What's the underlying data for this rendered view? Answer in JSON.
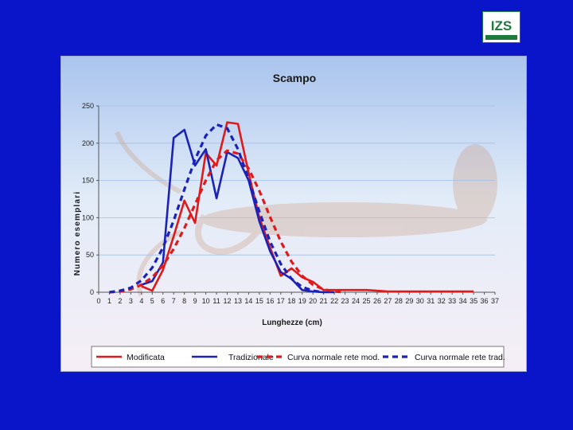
{
  "logo": {
    "text": "IZS",
    "colors": {
      "bg": "#ffffff",
      "fg": "#1e7a3a"
    }
  },
  "colors": {
    "background": "#0a14c8",
    "modificata": "#e01a1a",
    "tradizionale": "#1a22b8",
    "gridline": "#9fc0e8"
  },
  "chart_data": {
    "type": "line",
    "title": "Scampo",
    "xlabel": "Lunghezze (cm)",
    "ylabel": "Numero esemplari",
    "xlim": [
      0,
      37
    ],
    "ylim": [
      0,
      250
    ],
    "yticks": [
      0,
      50,
      100,
      150,
      200,
      250
    ],
    "x": [
      0,
      1,
      2,
      3,
      4,
      5,
      6,
      7,
      8,
      9,
      10,
      11,
      12,
      13,
      14,
      15,
      16,
      17,
      18,
      19,
      20,
      21,
      22,
      23,
      24,
      25,
      26,
      27,
      28,
      29,
      30,
      31,
      32,
      33,
      34,
      35,
      36,
      37
    ],
    "grid": "horizontal",
    "legend_position": "bottom",
    "series": [
      {
        "name": "Modificata",
        "style": "solid",
        "color": "#e01a1a",
        "points": [
          [
            4,
            8
          ],
          [
            5,
            2
          ],
          [
            6,
            30
          ],
          [
            7,
            75
          ],
          [
            8,
            123
          ],
          [
            9,
            93
          ],
          [
            10,
            187
          ],
          [
            11,
            170
          ],
          [
            12,
            228
          ],
          [
            13,
            226
          ],
          [
            14,
            160
          ],
          [
            15,
            100
          ],
          [
            16,
            60
          ],
          [
            17,
            22
          ],
          [
            18,
            32
          ],
          [
            19,
            20
          ],
          [
            20,
            14
          ],
          [
            21,
            3
          ],
          [
            22,
            3
          ],
          [
            23,
            3
          ],
          [
            24,
            3
          ],
          [
            25,
            3
          ],
          [
            26,
            2
          ],
          [
            27,
            1
          ],
          [
            28,
            1
          ],
          [
            29,
            1
          ],
          [
            30,
            1
          ],
          [
            31,
            1
          ],
          [
            32,
            1
          ],
          [
            33,
            1
          ],
          [
            34,
            1
          ],
          [
            35,
            1
          ]
        ]
      },
      {
        "name": "Tradizionale",
        "style": "solid",
        "color": "#1a22b8",
        "points": [
          [
            4,
            10
          ],
          [
            5,
            15
          ],
          [
            6,
            40
          ],
          [
            7,
            207
          ],
          [
            8,
            218
          ],
          [
            9,
            170
          ],
          [
            10,
            192
          ],
          [
            11,
            126
          ],
          [
            12,
            188
          ],
          [
            13,
            180
          ],
          [
            14,
            150
          ],
          [
            15,
            95
          ],
          [
            16,
            55
          ],
          [
            17,
            27
          ],
          [
            18,
            18
          ],
          [
            19,
            3
          ],
          [
            20,
            1
          ],
          [
            21,
            0
          ],
          [
            22,
            0
          ]
        ]
      },
      {
        "name": "Curva normale rete mod.",
        "style": "dashed",
        "color": "#e01a1a",
        "points": [
          [
            1,
            0
          ],
          [
            2,
            1
          ],
          [
            3,
            4
          ],
          [
            4,
            10
          ],
          [
            5,
            20
          ],
          [
            6,
            36
          ],
          [
            7,
            58
          ],
          [
            8,
            86
          ],
          [
            9,
            118
          ],
          [
            10,
            150
          ],
          [
            11,
            177
          ],
          [
            12,
            190
          ],
          [
            13,
            186
          ],
          [
            14,
            166
          ],
          [
            15,
            136
          ],
          [
            16,
            101
          ],
          [
            17,
            68
          ],
          [
            18,
            41
          ],
          [
            19,
            22
          ],
          [
            20,
            10
          ],
          [
            21,
            4
          ],
          [
            22,
            1
          ],
          [
            23,
            0
          ]
        ]
      },
      {
        "name": "Curva normale rete trad.",
        "style": "dashed",
        "color": "#1a22b8",
        "points": [
          [
            1,
            0
          ],
          [
            2,
            2
          ],
          [
            3,
            6
          ],
          [
            4,
            16
          ],
          [
            5,
            33
          ],
          [
            6,
            60
          ],
          [
            7,
            96
          ],
          [
            8,
            138
          ],
          [
            9,
            178
          ],
          [
            10,
            210
          ],
          [
            11,
            225
          ],
          [
            12,
            220
          ],
          [
            13,
            192
          ],
          [
            14,
            152
          ],
          [
            15,
            108
          ],
          [
            16,
            68
          ],
          [
            17,
            38
          ],
          [
            18,
            18
          ],
          [
            19,
            7
          ],
          [
            20,
            2
          ],
          [
            21,
            0
          ]
        ]
      }
    ]
  }
}
